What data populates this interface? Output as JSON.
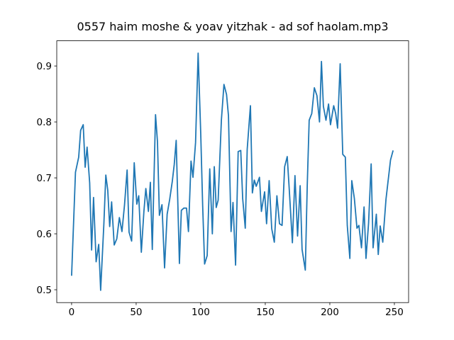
{
  "chart_data": {
    "type": "line",
    "title": "0557 haim moshe & yoav yitzhak - ad sof haolam.mp3",
    "x": [
      0,
      3,
      5.5,
      7,
      9,
      10.5,
      12,
      14,
      15.5,
      17,
      19,
      21,
      22.5,
      25,
      26.5,
      28,
      29.5,
      31,
      33,
      35,
      37,
      39,
      41,
      43,
      44.5,
      46.5,
      48.5,
      50.5,
      52,
      54,
      56,
      57.5,
      59.5,
      61,
      62.5,
      65,
      66.5,
      68,
      70,
      72,
      74,
      76,
      78,
      79.5,
      81,
      83.5,
      85,
      87,
      89,
      90.5,
      92.5,
      94,
      96,
      98,
      100,
      101.5,
      103,
      105,
      107,
      109,
      110.5,
      112,
      113.5,
      116,
      118,
      120,
      121.5,
      123.5,
      125,
      127,
      129,
      131,
      132.5,
      134.5,
      136,
      138.5,
      140,
      141.5,
      143,
      145.5,
      147,
      149.5,
      151,
      153,
      155,
      157,
      159,
      161,
      163,
      165,
      167,
      168.5,
      171,
      173,
      175,
      177,
      178.5,
      181,
      182.5,
      184,
      186,
      188,
      190,
      192,
      193.5,
      195,
      197,
      199,
      200.5,
      203,
      204.5,
      206,
      208,
      210,
      212,
      213.5,
      215.5,
      217,
      219,
      221,
      222.5,
      224.5,
      226.5,
      228,
      230,
      232,
      233.5,
      236,
      237.5,
      239,
      241,
      243.5,
      245,
      247,
      249
    ],
    "series": [
      {
        "color": "#1f77b4",
        "values": [
          0.525,
          0.71,
          0.737,
          0.785,
          0.795,
          0.719,
          0.755,
          0.691,
          0.571,
          0.665,
          0.55,
          0.581,
          0.499,
          0.618,
          0.705,
          0.678,
          0.613,
          0.657,
          0.58,
          0.591,
          0.629,
          0.604,
          0.652,
          0.714,
          0.603,
          0.587,
          0.727,
          0.653,
          0.668,
          0.567,
          0.64,
          0.681,
          0.64,
          0.692,
          0.572,
          0.813,
          0.765,
          0.633,
          0.652,
          0.539,
          0.635,
          0.662,
          0.694,
          0.724,
          0.767,
          0.547,
          0.642,
          0.646,
          0.646,
          0.604,
          0.73,
          0.701,
          0.763,
          0.923,
          0.78,
          0.651,
          0.546,
          0.561,
          0.716,
          0.6,
          0.72,
          0.647,
          0.66,
          0.803,
          0.867,
          0.849,
          0.811,
          0.604,
          0.656,
          0.544,
          0.747,
          0.749,
          0.663,
          0.61,
          0.751,
          0.829,
          0.673,
          0.696,
          0.685,
          0.701,
          0.64,
          0.675,
          0.618,
          0.695,
          0.609,
          0.585,
          0.668,
          0.618,
          0.615,
          0.72,
          0.738,
          0.682,
          0.584,
          0.704,
          0.596,
          0.686,
          0.572,
          0.535,
          0.686,
          0.803,
          0.815,
          0.861,
          0.847,
          0.8,
          0.908,
          0.828,
          0.803,
          0.832,
          0.795,
          0.829,
          0.815,
          0.789,
          0.904,
          0.742,
          0.737,
          0.615,
          0.556,
          0.695,
          0.663,
          0.61,
          0.615,
          0.575,
          0.648,
          0.556,
          0.619,
          0.725,
          0.575,
          0.635,
          0.563,
          0.614,
          0.585,
          0.662,
          0.692,
          0.732,
          0.749
        ]
      }
    ],
    "xlim": [
      -11.5,
      261
    ],
    "xticks": [
      0,
      50,
      100,
      150,
      200,
      250
    ],
    "ylim": [
      0.477,
      0.945
    ],
    "yticks": [
      0.5,
      0.6,
      0.7,
      0.8,
      0.9
    ]
  }
}
